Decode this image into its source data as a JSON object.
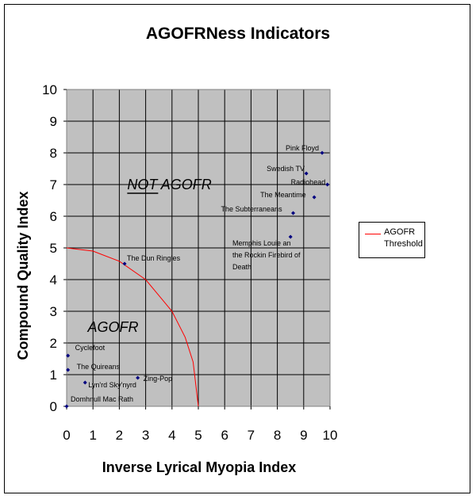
{
  "chart_data": {
    "type": "scatter",
    "title": "AGOFRNess Indicators",
    "xlabel": "Inverse Lyrical Myopia Index",
    "ylabel": "Compound Quality Index",
    "xlim": [
      0,
      10
    ],
    "ylim": [
      0,
      10
    ],
    "x_ticks": [
      0,
      1,
      2,
      3,
      4,
      5,
      6,
      7,
      8,
      9,
      10
    ],
    "y_ticks": [
      0,
      1,
      2,
      3,
      4,
      5,
      6,
      7,
      8,
      9,
      10
    ],
    "grid": true,
    "plot_background": "#c0c0c0",
    "legend_placement": "right",
    "series": [
      {
        "name": "AGOFR Threshold",
        "type": "line",
        "color": "#ff0000",
        "points": [
          [
            0,
            5
          ],
          [
            1,
            4.9
          ],
          [
            2,
            4.58
          ],
          [
            3,
            4.0
          ],
          [
            4,
            3.0
          ],
          [
            4.5,
            2.18
          ],
          [
            4.8,
            1.4
          ],
          [
            5,
            0
          ]
        ]
      },
      {
        "name": "",
        "type": "scatter",
        "color": "#000080",
        "points": [
          {
            "label": "Pink Floyd",
            "x": 9.7,
            "y": 8.0
          },
          {
            "label": "Swedish TV",
            "x": 9.1,
            "y": 7.35
          },
          {
            "label": "Radiohead",
            "x": 9.9,
            "y": 7.0
          },
          {
            "label": "The Meantime",
            "x": 9.4,
            "y": 6.6
          },
          {
            "label": "The Subterraneans",
            "x": 8.6,
            "y": 6.1
          },
          {
            "label": "Memphis Louie an the Rockin Firebird of Death",
            "x": 8.5,
            "y": 5.35
          },
          {
            "label": "The Dun Ringles",
            "x": 2.2,
            "y": 4.5
          },
          {
            "label": "Cyclefoot",
            "x": 0.05,
            "y": 1.6
          },
          {
            "label": "The Quireans",
            "x": 0.05,
            "y": 1.15
          },
          {
            "label": "Zing-Pop",
            "x": 2.7,
            "y": 0.9
          },
          {
            "label": "Lyn'rd Sky'nyrd",
            "x": 0.7,
            "y": 0.75
          },
          {
            "label": "Domhnull Mac Rath",
            "x": 0.0,
            "y": 0.0
          }
        ]
      }
    ],
    "annotations": [
      {
        "text": "NOT AGOFR",
        "x": 2.3,
        "y": 7.0
      },
      {
        "text": "AGOFR",
        "x": 0.8,
        "y": 2.5
      }
    ]
  },
  "legend": {
    "entries": [
      {
        "label": "AGOFR Threshold",
        "color": "#ff0000"
      }
    ]
  }
}
